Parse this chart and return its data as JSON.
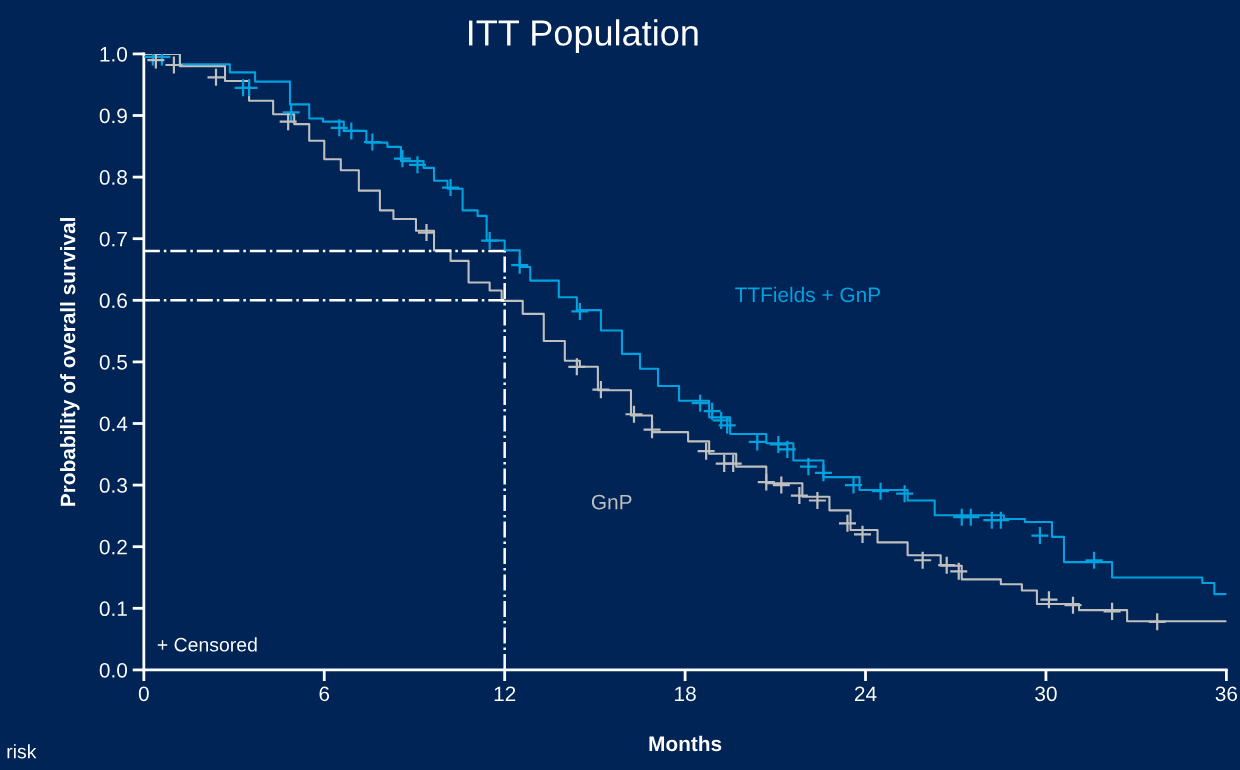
{
  "chart_data": {
    "type": "step",
    "title": "ITT Population",
    "xlabel": "Months",
    "ylabel": "Probability of overall survival",
    "xlim": [
      0,
      36
    ],
    "xticks": [
      0,
      6,
      12,
      18,
      24,
      30,
      36
    ],
    "ylim": [
      0,
      1.0
    ],
    "yticks": [
      {
        "value": 0,
        "label": "0.0"
      },
      0.1,
      0.2,
      0.3,
      0.4,
      0.5,
      0.6,
      0.7,
      0.8,
      0.9,
      {
        "value": 1,
        "label": "1.0"
      }
    ],
    "grid": false,
    "legend": false,
    "marker": "none",
    "line_style": "solid",
    "annotations": [
      "+ Censored",
      "risk"
    ],
    "ref_lines": [
      {
        "axis": "y",
        "value": 0.68,
        "color": "#ffffff",
        "line_style": "dashdot"
      },
      {
        "axis": "y",
        "value": 0.6,
        "color": "#ffffff",
        "line_style": "dashdot"
      },
      {
        "axis": "x",
        "value": 12,
        "color": "#ffffff",
        "line_style": "dashdot"
      }
    ],
    "series": [
      {
        "name": "TTFields + GnP",
        "color": "#00a3e0",
        "x": [
          0,
          1.2,
          2.86,
          3.7,
          4.86,
          5.5,
          5.96,
          6.65,
          7.4,
          8.1,
          8.55,
          9.3,
          9.65,
          10.1,
          10.6,
          11.1,
          11.4,
          12.0,
          12.5,
          12.85,
          13.8,
          14.4,
          15.2,
          15.9,
          16.5,
          17.1,
          17.8,
          18.8,
          19.5,
          20.7,
          21.6,
          22.6,
          23.8,
          25.4,
          26.3,
          28.6,
          29.3,
          30.2,
          30.6,
          31.8,
          32.2,
          35.2,
          35.6,
          36
        ],
        "values": [
          1.0,
          0.983,
          0.97,
          0.955,
          0.918,
          0.895,
          0.89,
          0.875,
          0.856,
          0.849,
          0.826,
          0.815,
          0.794,
          0.781,
          0.746,
          0.737,
          0.697,
          0.681,
          0.654,
          0.632,
          0.605,
          0.584,
          0.551,
          0.513,
          0.489,
          0.461,
          0.437,
          0.41,
          0.383,
          0.368,
          0.34,
          0.313,
          0.292,
          0.275,
          0.251,
          0.245,
          0.24,
          0.216,
          0.175,
          0.175,
          0.15,
          0.141,
          0.123,
          0.123
        ]
      },
      {
        "name": "GnP",
        "color": "#bfbfbf",
        "x": [
          0,
          1.2,
          2.7,
          3.5,
          4.3,
          5.0,
          5.5,
          6.0,
          6.55,
          7.15,
          7.85,
          8.3,
          9.05,
          9.65,
          10.2,
          10.8,
          11.5,
          11.9,
          12.6,
          13.3,
          14.0,
          14.5,
          15.1,
          16.2,
          16.9,
          18.1,
          18.8,
          19.7,
          20.7,
          21.9,
          22.8,
          23.5,
          24.4,
          25.4,
          26.5,
          27.2,
          28.5,
          29.2,
          29.7,
          31.1,
          32.7,
          36
        ],
        "values": [
          1.0,
          0.98,
          0.956,
          0.924,
          0.902,
          0.886,
          0.859,
          0.829,
          0.811,
          0.778,
          0.746,
          0.732,
          0.713,
          0.681,
          0.664,
          0.629,
          0.616,
          0.599,
          0.578,
          0.534,
          0.502,
          0.492,
          0.454,
          0.413,
          0.386,
          0.371,
          0.351,
          0.33,
          0.303,
          0.281,
          0.259,
          0.227,
          0.207,
          0.186,
          0.169,
          0.147,
          0.139,
          0.129,
          0.107,
          0.097,
          0.079,
          0.079
        ]
      },
      {
        "type": "scatter",
        "marker": "cross",
        "color": "#00a3e0",
        "x": [
          0.3,
          0.6,
          3.3,
          3.5,
          4.9,
          6.5,
          6.9,
          7.6,
          8.6,
          9.1,
          10.2,
          11.5,
          12.5,
          14.5,
          18.5,
          18.9,
          19.2,
          19.4,
          20.4,
          21.1,
          21.4,
          22.1,
          22.6,
          23.6,
          24.5,
          25.3,
          27.2,
          27.5,
          28.2,
          28.5,
          29.8,
          31.6
        ],
        "values": [
          0.995,
          0.995,
          0.945,
          0.945,
          0.905,
          0.88,
          0.875,
          0.857,
          0.83,
          0.82,
          0.783,
          0.697,
          0.657,
          0.582,
          0.433,
          0.42,
          0.405,
          0.397,
          0.37,
          0.366,
          0.358,
          0.33,
          0.32,
          0.3,
          0.29,
          0.286,
          0.248,
          0.248,
          0.243,
          0.243,
          0.218,
          0.178
        ]
      },
      {
        "type": "scatter",
        "marker": "cross",
        "color": "#bfbfbf",
        "x": [
          0.4,
          1.0,
          2.4,
          4.8,
          9.4,
          14.4,
          15.2,
          16.3,
          16.9,
          18.7,
          19.3,
          19.6,
          20.7,
          21.2,
          21.8,
          22.4,
          23.4,
          23.9,
          25.9,
          26.7,
          27.1,
          30.1,
          30.9,
          32.2,
          33.7
        ],
        "values": [
          0.99,
          0.982,
          0.962,
          0.89,
          0.71,
          0.492,
          0.455,
          0.415,
          0.39,
          0.355,
          0.335,
          0.335,
          0.305,
          0.3,
          0.283,
          0.275,
          0.238,
          0.22,
          0.178,
          0.17,
          0.16,
          0.114,
          0.105,
          0.095,
          0.078
        ]
      }
    ]
  }
}
